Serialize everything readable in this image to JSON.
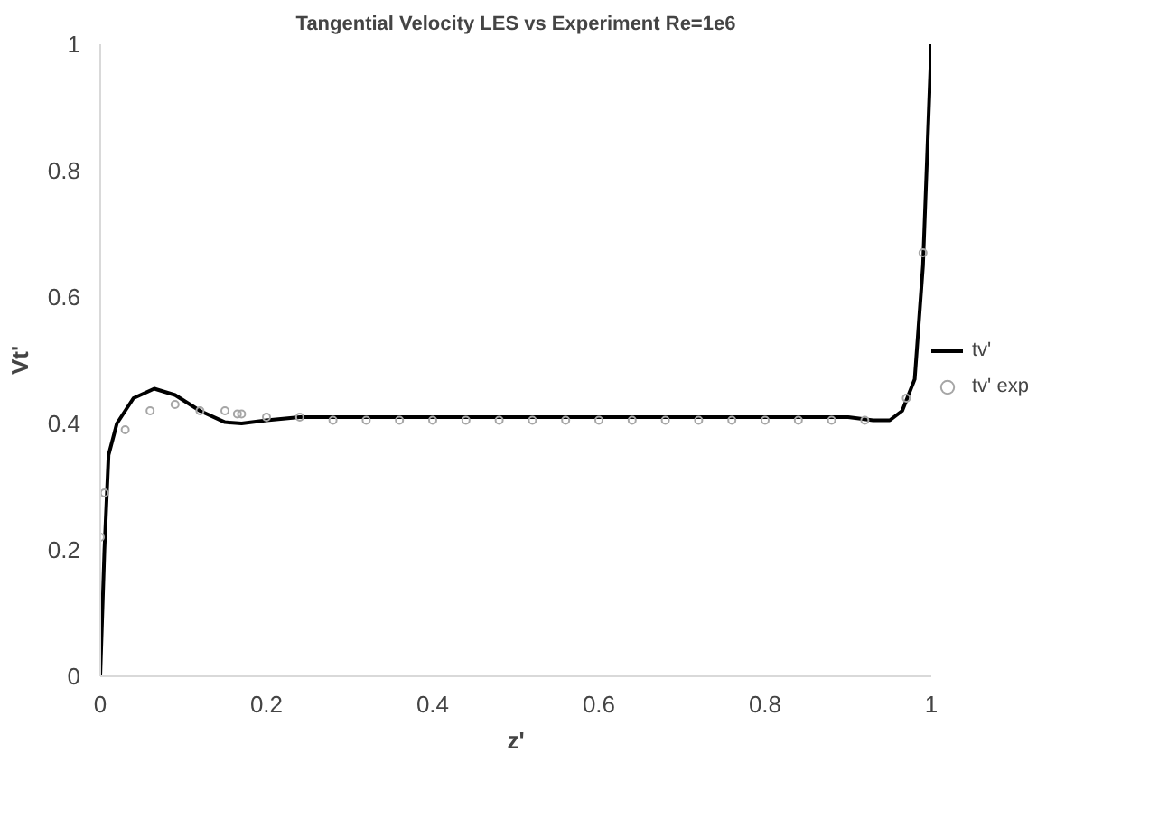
{
  "chart_data": {
    "type": "line",
    "title": "Tangential Velocity LES vs Experiment Re=1e6",
    "xlabel": "z'",
    "ylabel": "Vt'",
    "xlim": [
      0,
      1
    ],
    "ylim": [
      0,
      1
    ],
    "xticks": [
      0,
      0.2,
      0.4,
      0.6,
      0.8,
      1
    ],
    "yticks": [
      0,
      0.2,
      0.4,
      0.6,
      0.8,
      1
    ],
    "grid": false,
    "legend": "right",
    "series": [
      {
        "name": "tv'",
        "color": "#000000",
        "marker": "none",
        "x": [
          0,
          0.005,
          0.01,
          0.02,
          0.04,
          0.065,
          0.09,
          0.12,
          0.15,
          0.17,
          0.2,
          0.24,
          0.5,
          0.9,
          0.93,
          0.95,
          0.965,
          0.98,
          0.99,
          1
        ],
        "values": [
          0,
          0.2,
          0.35,
          0.4,
          0.44,
          0.455,
          0.445,
          0.42,
          0.402,
          0.4,
          0.405,
          0.41,
          0.41,
          0.41,
          0.405,
          0.405,
          0.42,
          0.47,
          0.65,
          1
        ]
      },
      {
        "name": "tv' exp",
        "type": "scatter",
        "color": "#a6a6a6",
        "marker": "circle",
        "x": [
          0,
          0.005,
          0.03,
          0.06,
          0.09,
          0.12,
          0.15,
          0.165,
          0.17,
          0.2,
          0.24,
          0.28,
          0.32,
          0.36,
          0.4,
          0.44,
          0.48,
          0.52,
          0.56,
          0.6,
          0.64,
          0.68,
          0.72,
          0.76,
          0.8,
          0.84,
          0.88,
          0.92,
          0.97,
          0.99
        ],
        "values": [
          0.22,
          0.29,
          0.39,
          0.42,
          0.43,
          0.42,
          0.42,
          0.415,
          0.415,
          0.41,
          0.41,
          0.405,
          0.405,
          0.405,
          0.405,
          0.405,
          0.405,
          0.405,
          0.405,
          0.405,
          0.405,
          0.405,
          0.405,
          0.405,
          0.405,
          0.405,
          0.405,
          0.405,
          0.44,
          0.67
        ]
      }
    ]
  }
}
